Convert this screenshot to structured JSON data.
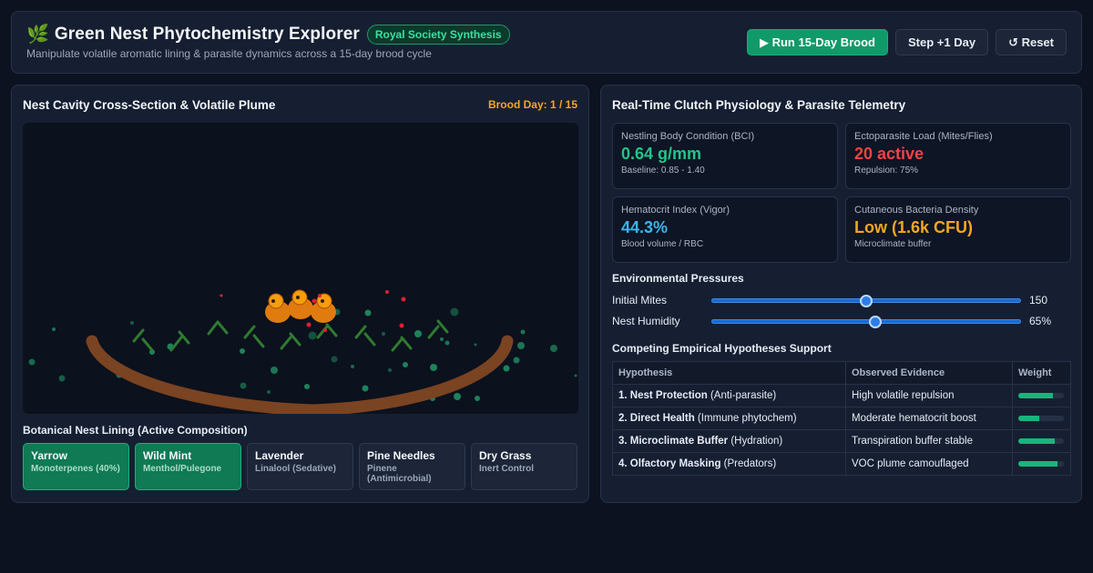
{
  "header": {
    "leaf_icon": "leaf-icon",
    "title": "Green Nest Phytochemistry Explorer",
    "badge": "Royal Society Synthesis",
    "subtitle": "Manipulate volatile aromatic lining & parasite dynamics across a 15-day brood cycle",
    "buttons": {
      "run": "▶ Run 15-Day Brood",
      "step": "Step +1 Day",
      "reset": "↺ Reset"
    }
  },
  "left_panel": {
    "title": "Nest Cavity Cross-Section & Volatile Plume",
    "brood_day": "Brood Day: 1 / 15",
    "lining_title": "Botanical Nest Lining (Active Composition)",
    "chips": [
      {
        "name": "Yarrow",
        "sub": "Monoterpenes (40%)",
        "active": true
      },
      {
        "name": "Wild Mint",
        "sub": "Menthol/Pulegone",
        "active": true
      },
      {
        "name": "Lavender",
        "sub": "Linalool (Sedative)",
        "active": false
      },
      {
        "name": "Pine Needles",
        "sub": "Pinene (Antimicrobial)",
        "active": false
      },
      {
        "name": "Dry Grass",
        "sub": "Inert Control",
        "active": false
      }
    ]
  },
  "right_panel": {
    "title": "Real-Time Clutch Physiology & Parasite Telemetry",
    "cards": [
      {
        "label": "Nestling Body Condition (BCI)",
        "value": "0.64 g/mm",
        "sub": "Baseline: 0.85 - 1.40",
        "color": "#22c58a"
      },
      {
        "label": "Ectoparasite Load (Mites/Flies)",
        "value": "20 active",
        "sub": "Repulsion: 75%",
        "color": "#ef4444"
      },
      {
        "label": "Hematocrit Index (Vigor)",
        "value": "44.3%",
        "sub": "Blood volume / RBC",
        "color": "#3bb5f0"
      },
      {
        "label": "Cutaneous Bacteria Density",
        "value": "Low (1.6k CFU)",
        "sub": "Microclimate buffer",
        "color": "#f5a623"
      }
    ],
    "env_title": "Environmental Pressures",
    "sliders": [
      {
        "label": "Initial Mites",
        "value": "150",
        "level": 0.5
      },
      {
        "label": "Nest Humidity",
        "value": "65%",
        "level": 0.53
      }
    ],
    "hyp_title": "Competing Empirical Hypotheses Support",
    "table": {
      "headers": [
        "Hypothesis",
        "Observed Evidence",
        "Weight"
      ],
      "rows": [
        {
          "name": "1. Nest Protection",
          "detail": " (Anti-parasite)",
          "evidence": "High volatile repulsion",
          "weight": 0.75
        },
        {
          "name": "2. Direct Health",
          "detail": " (Immune phytochem)",
          "evidence": "Moderate hematocrit boost",
          "weight": 0.45
        },
        {
          "name": "3. Microclimate Buffer",
          "detail": " (Hydration)",
          "evidence": "Transpiration buffer stable",
          "weight": 0.8
        },
        {
          "name": "4. Olfactory Masking",
          "detail": " (Predators)",
          "evidence": "VOC plume camouflaged",
          "weight": 0.85
        }
      ]
    }
  }
}
